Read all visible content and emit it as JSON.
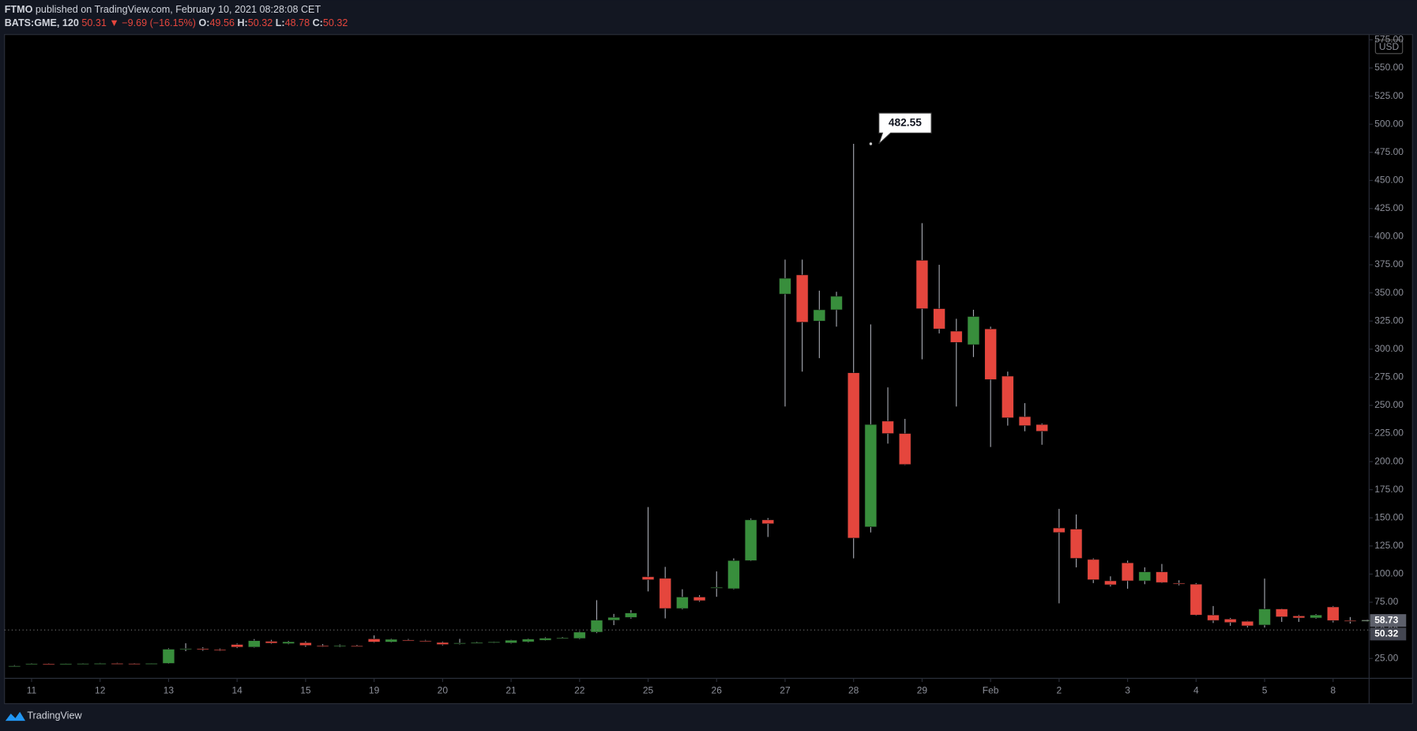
{
  "header": {
    "author": "FTMO",
    "published": "published on TradingView.com, February 10, 2021 08:28:08 CET",
    "symbol": "BATS:GME, 120",
    "last": 50.31,
    "change": "▼ −9.69 (−16.15%)",
    "ohlc": [
      {
        "label": "O:",
        "value": 49.56
      },
      {
        "label": "H:",
        "value": 50.32
      },
      {
        "label": "L:",
        "value": 48.78
      },
      {
        "label": "C:",
        "value": 50.32
      }
    ]
  },
  "footer": {
    "brand": "TradingView"
  },
  "chart_data": {
    "type": "candlestick",
    "currency": "USD",
    "categories": [
      null,
      "11",
      null,
      null,
      null,
      "12",
      null,
      null,
      null,
      "13",
      null,
      null,
      null,
      "14",
      null,
      null,
      null,
      "15",
      null,
      null,
      null,
      "19",
      null,
      null,
      null,
      "20",
      null,
      null,
      null,
      "21",
      null,
      null,
      null,
      "22",
      null,
      null,
      null,
      "25",
      null,
      null,
      null,
      "26",
      null,
      null,
      null,
      "27",
      null,
      null,
      null,
      "28",
      null,
      null,
      null,
      "29",
      null,
      null,
      null,
      "Feb",
      null,
      null,
      null,
      "2",
      null,
      null,
      null,
      "3",
      null,
      null,
      null,
      "4",
      null,
      null,
      null,
      "5",
      null,
      null,
      null,
      "8",
      null,
      null
    ],
    "open": [
      17.8,
      19.9,
      20.2,
      20.1,
      20.3,
      20.5,
      20.6,
      20.5,
      20.3,
      20.6,
      33.2,
      33.8,
      32.9,
      37.4,
      35.1,
      40.2,
      38.2,
      39,
      36.4,
      36,
      36.2,
      42.4,
      39.6,
      41.4,
      40.8,
      39.2,
      38.4,
      38.8,
      39.2,
      38.8,
      39.8,
      41.2,
      42.8,
      42.8,
      48.4,
      59,
      61.5,
      97.6,
      96.2,
      69.4,
      79.6,
      87.6,
      87,
      112,
      148.2,
      349,
      366,
      325,
      335,
      279,
      142,
      236,
      225,
      379,
      336,
      316,
      304,
      318,
      276,
      240,
      233,
      141,
      140,
      113,
      94,
      110,
      94,
      102,
      92,
      91,
      63.6,
      60,
      58,
      54.7,
      69,
      62.8,
      61,
      70.8,
      58.7,
      58.3
    ],
    "high": [
      19,
      20.8,
      20.6,
      20.6,
      20.8,
      21,
      21.1,
      20.9,
      20.7,
      34,
      38.5,
      35,
      33.8,
      38.3,
      42.2,
      41.5,
      40.6,
      40.2,
      37.8,
      37.4,
      37,
      45.5,
      42.6,
      42.3,
      41.5,
      40,
      42.4,
      39.8,
      40,
      41.6,
      42.8,
      43.8,
      44,
      49.2,
      76.8,
      64.6,
      68,
      159.6,
      106.4,
      86.5,
      81.2,
      102.4,
      114,
      149.4,
      149.8,
      379.6,
      379.6,
      352,
      351,
      482.55,
      322,
      266,
      238,
      412,
      375,
      327,
      335,
      320,
      280,
      252,
      234,
      158,
      153,
      114,
      98,
      112,
      106,
      109,
      94.5,
      92,
      71.6,
      61,
      58.4,
      96,
      69.4,
      63.6,
      64.4,
      71.6,
      61.8,
      59.4
    ],
    "low": [
      17.5,
      19.6,
      19.8,
      19.8,
      20,
      20.1,
      20.2,
      20.1,
      19.9,
      20.2,
      31.5,
      31.8,
      31.6,
      34.2,
      34.6,
      38,
      37.6,
      35.4,
      35.2,
      35.1,
      35.3,
      39,
      39.1,
      40.6,
      39.8,
      36.6,
      37.5,
      38.2,
      38.6,
      38.2,
      39.2,
      40.8,
      42.3,
      42.2,
      47.5,
      54.6,
      60.4,
      84.6,
      60.6,
      68.6,
      75.4,
      79.8,
      86.4,
      111.5,
      133,
      249,
      280,
      292,
      320,
      114,
      137,
      216,
      197,
      291,
      314,
      249,
      293,
      213,
      232,
      227,
      215,
      74,
      106,
      92,
      89,
      87,
      91,
      92,
      90,
      63,
      56.5,
      54,
      52.6,
      52.5,
      57.5,
      57.5,
      60.3,
      57,
      56,
      57.6
    ],
    "close": [
      18.4,
      20.4,
      20.1,
      20.3,
      20.5,
      20.6,
      20.5,
      20.3,
      20.6,
      33.2,
      33.8,
      32.9,
      32.4,
      35.1,
      40.8,
      38.6,
      39.8,
      36.6,
      36,
      36.5,
      35.8,
      39.6,
      42,
      41.2,
      40.2,
      37.4,
      38.8,
      39.2,
      39.7,
      41.2,
      42.2,
      43,
      43.3,
      48.4,
      59,
      61.5,
      65.4,
      95,
      69.4,
      79.6,
      76.4,
      88.2,
      112,
      148.2,
      144.8,
      363,
      324,
      335,
      347,
      132,
      233,
      225,
      197.5,
      336,
      318,
      306,
      329,
      273,
      239,
      232,
      227,
      137,
      114,
      95,
      90.5,
      94,
      102,
      92.5,
      91.5,
      63.6,
      58.8,
      57,
      54,
      69,
      62,
      61,
      63.6,
      58.7,
      58.3,
      58.73
    ],
    "up_color": "#388e3c",
    "down_color": "#e5463d",
    "wick_color": "#a3a6af",
    "callout": 482.55,
    "price_markers": [
      58.73,
      50.32
    ],
    "ylim": [
      7.3,
      579.7
    ],
    "yticks": [
      {
        "value": 25,
        "label": "25.00"
      },
      {
        "value": 50,
        "label": "50.00"
      },
      {
        "value": 75,
        "label": "75.00"
      },
      {
        "value": 100,
        "label": "100.00"
      },
      {
        "value": 125,
        "label": "125.00"
      },
      {
        "value": 150,
        "label": "150.00"
      },
      {
        "value": 175,
        "label": "175.00"
      },
      {
        "value": 200,
        "label": "200.00"
      },
      {
        "value": 225,
        "label": "225.00"
      },
      {
        "value": 250,
        "label": "250.00"
      },
      {
        "value": 275,
        "label": "275.00"
      },
      {
        "value": 300,
        "label": "300.00"
      },
      {
        "value": 325,
        "label": "325.00"
      },
      {
        "value": 350,
        "label": "350.00"
      },
      {
        "value": 375,
        "label": "375.00"
      },
      {
        "value": 400,
        "label": "400.00"
      },
      {
        "value": 425,
        "label": "425.00"
      },
      {
        "value": 450,
        "label": "450.00"
      },
      {
        "value": 475,
        "label": "475.00"
      },
      {
        "value": 500,
        "label": "500.00"
      },
      {
        "value": 525,
        "label": "525.00"
      },
      {
        "value": 550,
        "label": "550.00"
      },
      {
        "value": 575,
        "label": "575.00"
      }
    ],
    "grid": false
  }
}
